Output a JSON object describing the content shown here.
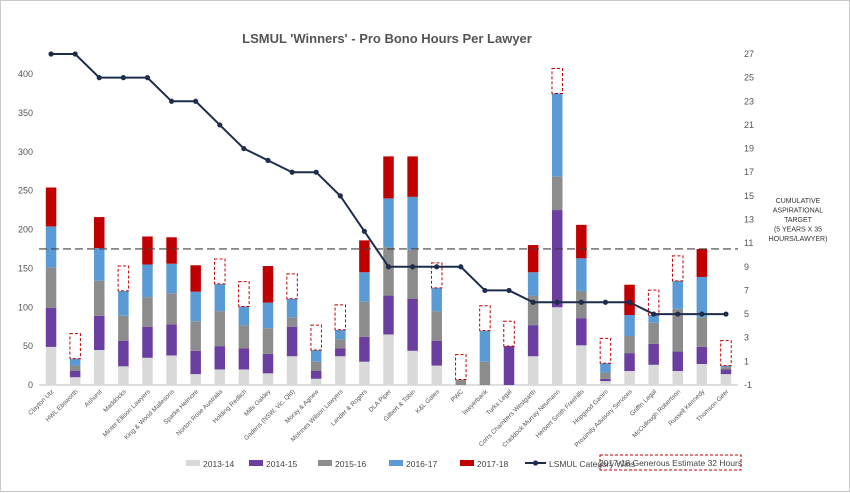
{
  "chart_data": {
    "type": "bar",
    "stacked": true,
    "title": "LSMUL 'Winners' - Pro Bono Hours Per Lawyer",
    "ylim_left": [
      0,
      400
    ],
    "yticks_left": [
      0,
      50,
      100,
      150,
      200,
      250,
      300,
      350,
      400
    ],
    "ylim_right": [
      -1,
      27
    ],
    "yticks_right": [
      -1,
      1,
      3,
      5,
      7,
      9,
      11,
      13,
      15,
      17,
      19,
      21,
      23,
      25,
      27
    ],
    "grid": false,
    "legend_position": "bottom",
    "categories": [
      "Clayton Utz",
      "HWL Ebsworth",
      "Ashurst",
      "Maddocks",
      "Minter Ellison Lawyers",
      "King & Wood Mallesons",
      "Sparke Helmore",
      "Norton Rose Australia",
      "Holding Redlich",
      "Mills Oakley",
      "Gadens (NSW, Vic, Qld)",
      "Moray & Agnew",
      "McInnes Wilson Lawyers",
      "Lander & Rogers",
      "DLA Piper",
      "Gilbert & Tobin",
      "K&L Gates",
      "PWC",
      "lawyerbank",
      "Turks Legal",
      "Corrs Chambers Westgarth",
      "Craddock Murray Neumann",
      "Herbert Smith Freehills",
      "Hopgood Ganim",
      "Proximity Advisory Services",
      "Griffin Legal",
      "McCullough Robertson",
      "Russell Kennedy",
      "Thomson Geer"
    ],
    "series": [
      {
        "name": "2013-14",
        "color": "#d9d9d9",
        "values": [
          49,
          10,
          45,
          24,
          35,
          38,
          14,
          20,
          20,
          15,
          37,
          8,
          37,
          30,
          65,
          44,
          25,
          0,
          0,
          0,
          37,
          100,
          51,
          5,
          18,
          26,
          18,
          27,
          14
        ]
      },
      {
        "name": "2014-15",
        "color": "#6b3fa0",
        "values": [
          50,
          8,
          44,
          33,
          40,
          40,
          30,
          30,
          27,
          25,
          38,
          10,
          10,
          32,
          50,
          67,
          32,
          0,
          0,
          50,
          40,
          125,
          35,
          3,
          23,
          27,
          25,
          22,
          6
        ]
      },
      {
        "name": "2015-16",
        "color": "#8c8c8c",
        "values": [
          52,
          7,
          45,
          32,
          38,
          40,
          38,
          45,
          30,
          33,
          12,
          12,
          12,
          45,
          62,
          63,
          38,
          7,
          30,
          0,
          38,
          43,
          35,
          8,
          22,
          27,
          55,
          38,
          3
        ]
      },
      {
        "name": "2016-17",
        "color": "#5b9bd5",
        "values": [
          53,
          9,
          42,
          32,
          42,
          38,
          38,
          35,
          24,
          33,
          24,
          15,
          12,
          38,
          63,
          68,
          30,
          0,
          40,
          0,
          30,
          107,
          42,
          12,
          27,
          10,
          36,
          52,
          2
        ]
      },
      {
        "name": "2017-18",
        "color": "#c00000",
        "values": [
          50,
          0,
          40,
          0,
          36,
          34,
          34,
          0,
          0,
          47,
          0,
          0,
          0,
          41,
          54,
          52,
          0,
          0,
          0,
          0,
          35,
          0,
          43,
          0,
          39,
          0,
          0,
          36,
          0
        ]
      }
    ],
    "estimate_series": {
      "name": "2017-18 Generous Estimate 32 Hours",
      "values": [
        0,
        32,
        0,
        32,
        0,
        0,
        0,
        32,
        32,
        0,
        32,
        32,
        32,
        0,
        0,
        0,
        32,
        32,
        32,
        32,
        0,
        32,
        0,
        32,
        0,
        32,
        32,
        0,
        32
      ]
    },
    "line_series": {
      "name": "LSMUL Category Wins",
      "axis": "right",
      "color": "#1f2d4d",
      "values": [
        27,
        27,
        25,
        25,
        25,
        23,
        23,
        21,
        19,
        18,
        17,
        17,
        15,
        12,
        9,
        9,
        9,
        9,
        7,
        7,
        6,
        6,
        6,
        6,
        6,
        5,
        5,
        5,
        5
      ]
    },
    "reference_line": {
      "value": 175,
      "axis": "left",
      "style": "dashed"
    },
    "annotation": [
      "CUMULATIVE",
      "ASPIRATIONAL",
      "TARGET",
      "(5 YEARS X 35",
      "HOURS/LAWYER)"
    ]
  }
}
